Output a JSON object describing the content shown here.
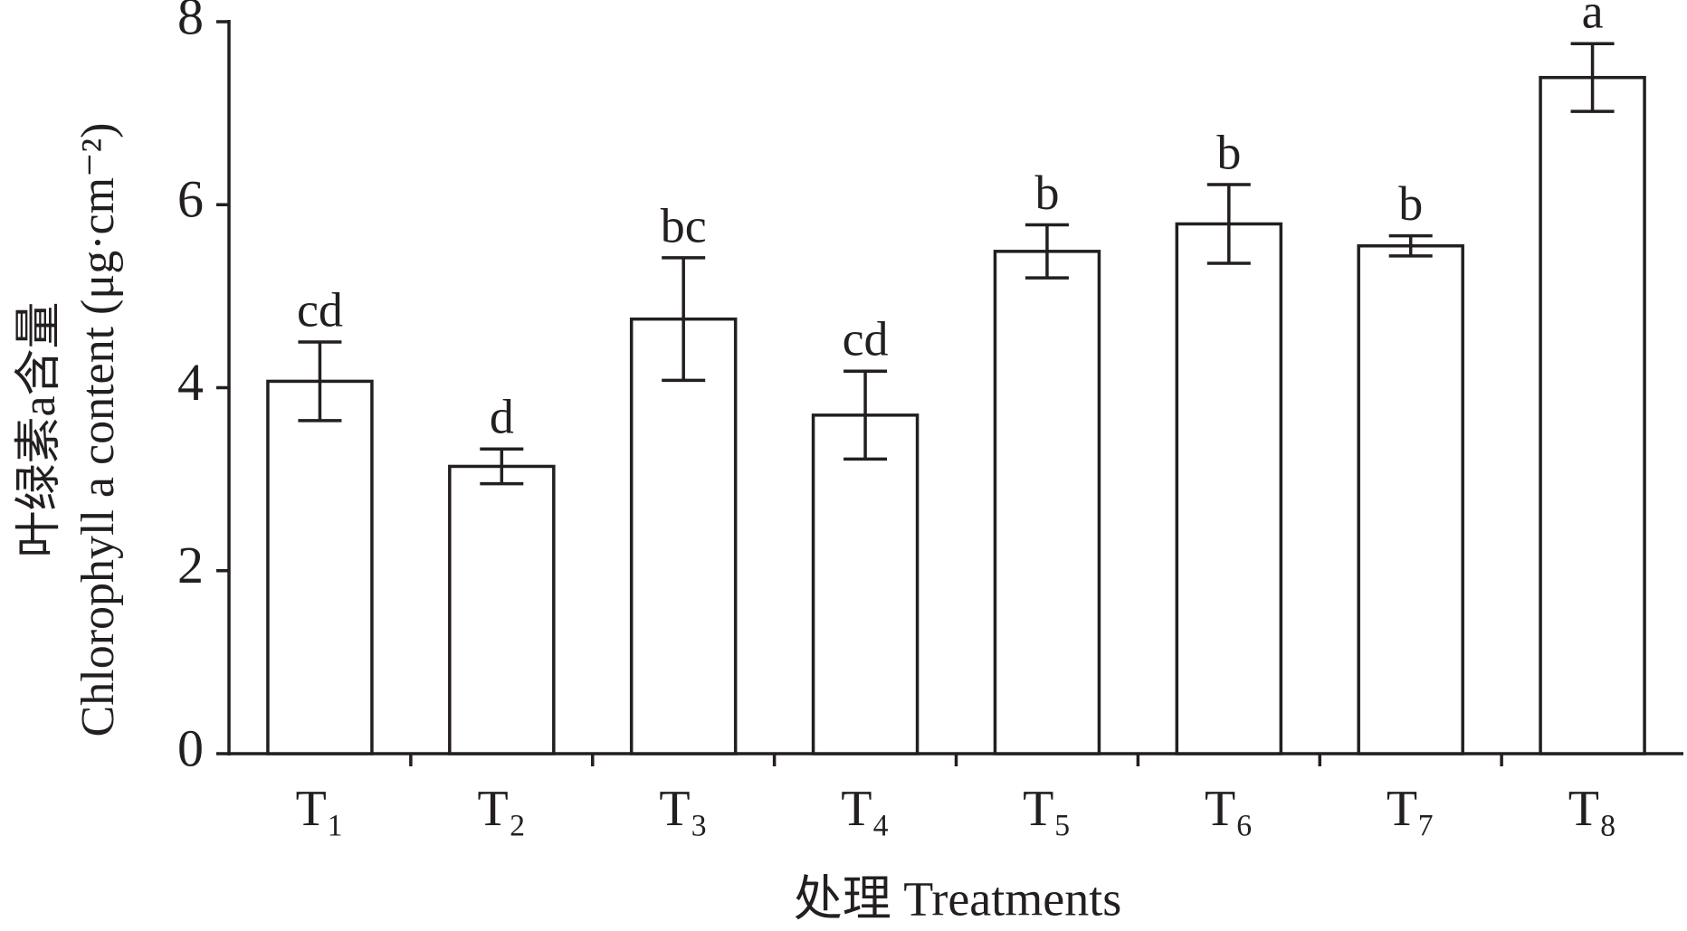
{
  "chart_data": {
    "type": "bar",
    "y_axis_label": [
      "叶绿素a含量",
      "Chlorophyll a content (μg·cm⁻²)"
    ],
    "x_axis_label": "处理 Treatments",
    "categories": [
      "T₁",
      "T₂",
      "T₃",
      "T₄",
      "T₅",
      "T₆",
      "T₇",
      "T₈"
    ],
    "values": [
      4.07,
      3.14,
      4.75,
      3.7,
      5.49,
      5.79,
      5.55,
      7.39
    ],
    "errors": [
      0.43,
      0.19,
      0.67,
      0.48,
      0.29,
      0.43,
      0.11,
      0.37
    ],
    "significance_labels": [
      "cd",
      "d",
      "bc",
      "cd",
      "b",
      "b",
      "b",
      "a"
    ],
    "color": "#ffffff",
    "edge_color": "#231f20",
    "ylim": [
      0,
      8
    ],
    "yticks": [
      0,
      2,
      4,
      6,
      8
    ],
    "grid": false
  }
}
